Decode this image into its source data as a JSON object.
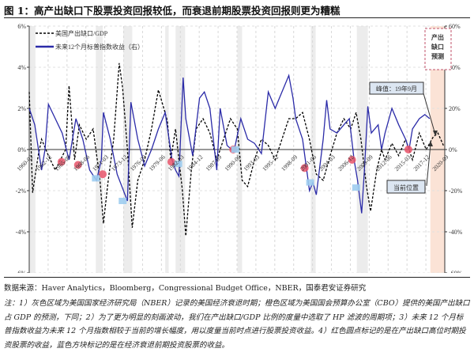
{
  "title": "图 1：高产出缺口下股票投资回报较低，而衰退前期股票投资回报则更为糟糕",
  "source": "数据来源：Haver Analytics，Bloomberg，Congressional Budget Office，NBER，国泰君安证券研究",
  "note": "注：1）灰色区域为美国国家经济研究局（NBER）记录的美国经济衰退时期；橙色区域为美国国会预算办公室（CBO）提供的美国产出缺口占 GDP 的预测，下同；2）为了更为明显的刻画波动，我们在产出缺口/GDP 比例的度量中选取了 HP 滤波的周期项；3）未来 12 个月标普指数收益为未来 12 个月指数相较于当前的增长幅度，用以度量当前时点进行股票投资收益。4）红色圆点标记的是在产出缺口高位时期投资股票的收益，蓝色方块标记的是在经济衰退前期投资股票的收益。",
  "chart_data": {
    "type": "line",
    "xlim": [
      1960.2,
      2020.7
    ],
    "ylim_left": [
      -6,
      6
    ],
    "ylim_right": [
      -60,
      60
    ],
    "left_ticks": [
      "-6%",
      "-4%",
      "-2%",
      "0%",
      "2%",
      "4%",
      "6%"
    ],
    "right_ticks": [
      "-60%",
      "-40%",
      "-20%",
      "0%",
      "20%",
      "40%",
      "60%"
    ],
    "x_tick_labels": [
      "1960-03",
      "1962-12",
      "1965-09",
      "1968-06",
      "1971-03",
      "1973-12",
      "1976-09",
      "1979-06",
      "1982-03",
      "1984-12",
      "1987-09",
      "1990-06",
      "1993-03",
      "1995-12",
      "1998-09",
      "2001-06",
      "2004-03",
      "2006-12",
      "2009-09",
      "2012-06",
      "2015-03",
      "2017-12",
      "2020-09"
    ],
    "grid": true,
    "legend_placement": "top-left",
    "recessions": [
      [
        1960.3,
        1961.1
      ],
      [
        1969.9,
        1970.9
      ],
      [
        1973.9,
        1975.2
      ],
      [
        1980.0,
        1980.5
      ],
      [
        1981.5,
        1982.9
      ],
      [
        1990.5,
        1991.2
      ],
      [
        2001.2,
        2001.9
      ],
      [
        2007.9,
        2009.5
      ]
    ],
    "forecast_range": [
      2018.6,
      2020.7
    ],
    "colors": {
      "gap": "#000000",
      "ret": "#2b2ba8",
      "recession": "#ececec",
      "forecast": "#fbe3d6",
      "red_dot": "#e8536a",
      "blue_square": "#9fcdf0"
    },
    "series": [
      {
        "name": "美国产出缺口/GDP",
        "axis": "left",
        "style": "dashed",
        "x": [
          1960.2,
          1960.7,
          1961.5,
          1962,
          1963,
          1964,
          1965.5,
          1966,
          1966.8,
          1967.5,
          1968.5,
          1969.5,
          1970.5,
          1971,
          1971.7,
          1972.5,
          1973.3,
          1973.8,
          1974.5,
          1975.2,
          1976,
          1977,
          1978,
          1979,
          1979.8,
          1980.3,
          1980.8,
          1981.5,
          1982.5,
          1983,
          1983.8,
          1984.5,
          1985.5,
          1986.5,
          1987.5,
          1988.5,
          1989.5,
          1990.5,
          1991.2,
          1992,
          1993,
          1994,
          1995,
          1996,
          1997,
          1998,
          1999,
          2000,
          2001,
          2002,
          2003,
          2004,
          2005,
          2006,
          2007,
          2007.8,
          2008.5,
          2009.3,
          2009.9,
          2010.8,
          2011.5,
          2012,
          2013,
          2014,
          2015,
          2016,
          2017,
          2018,
          2019,
          2019.7,
          2020.5
        ],
        "values": [
          2.8,
          -2.1,
          -0.3,
          0.5,
          -0.3,
          -1,
          0,
          3.1,
          -0.5,
          1.2,
          0.5,
          1,
          -1.5,
          -3.6,
          -1.5,
          0.5,
          4.2,
          3,
          0,
          -3.8,
          -1.5,
          -0.5,
          1,
          2.9,
          2,
          1.4,
          -0.5,
          1,
          -2,
          -4.2,
          -1,
          1,
          1.5,
          0.8,
          -0.5,
          0.5,
          1.5,
          1,
          -1.5,
          -1.8,
          -0.5,
          0.5,
          0.2,
          -0.5,
          0.5,
          1.5,
          1.5,
          1.8,
          0.5,
          -1.2,
          -1.5,
          -0.3,
          0.8,
          1.5,
          1,
          1.8,
          0.5,
          -1.8,
          -3,
          -1,
          0,
          -0.5,
          0.3,
          -0.3,
          0.5,
          -0.5,
          0.8,
          0,
          0.6,
          0.8,
          0.2
        ]
      },
      {
        "name": "未来12个月标普指数收益（右）",
        "axis": "right",
        "style": "solid",
        "x": [
          1960.2,
          1961,
          1962,
          1962.5,
          1963,
          1964,
          1965,
          1966,
          1967,
          1968,
          1969,
          1970,
          1970.7,
          1971,
          1972,
          1973,
          1974.5,
          1975,
          1976,
          1977,
          1978,
          1979,
          1980,
          1981,
          1981.5,
          1982,
          1982.6,
          1983,
          1984,
          1985,
          1985.7,
          1986.5,
          1987.5,
          1988,
          1989,
          1990,
          1991,
          1992,
          1993,
          1994,
          1995,
          1996,
          1997,
          1998,
          1998.6,
          1999,
          2000,
          2000.8,
          2001,
          2001.5,
          2002,
          2003,
          2003.5,
          2004,
          2005,
          2006,
          2006.8,
          2007.5,
          2008,
          2008.6,
          2009,
          2009.5,
          2010,
          2011,
          2011.5,
          2012,
          2013,
          2014,
          2015,
          2015.5,
          2016,
          2017,
          2017.8,
          2018.5
        ],
        "values": [
          20,
          12,
          -10,
          0,
          22,
          15,
          8,
          -5,
          15,
          5,
          -10,
          -15,
          -5,
          18,
          5,
          -12,
          -25,
          23,
          5,
          -8,
          0,
          10,
          18,
          -5,
          -10,
          -13,
          35,
          15,
          -3,
          25,
          28,
          20,
          -10,
          20,
          2,
          -1,
          15,
          5,
          3,
          -2,
          28,
          20,
          28,
          36,
          25,
          15,
          5,
          -15,
          -20,
          -16,
          -22,
          5,
          24,
          10,
          8,
          12,
          15,
          -5,
          -15,
          -31,
          -10,
          21,
          8,
          12,
          0,
          8,
          20,
          12,
          5,
          0,
          10,
          15,
          17,
          15
        ]
      }
    ],
    "red_dots": {
      "x": [
        1964.9,
        1967.3,
        1970.9,
        1980.9,
        1989.9,
        2000.3,
        2007.2,
        2015.4
      ],
      "values": [
        -0.6,
        -0.75,
        -1.2,
        -0.6,
        0,
        -0.9,
        -0.5,
        0
      ]
    },
    "blue_squares": {
      "x": [
        1969.9,
        1973.8,
        1981.9,
        1990.2,
        2001.1,
        2007.8
      ],
      "values": [
        -1.4,
        -2.5,
        -0.7,
        0,
        -1.6,
        -1.85
      ]
    },
    "annotations": {
      "peak": "峰值：19年9月",
      "current": "当前位置",
      "forecast": [
        "产出",
        "缺口",
        "预测"
      ]
    }
  }
}
